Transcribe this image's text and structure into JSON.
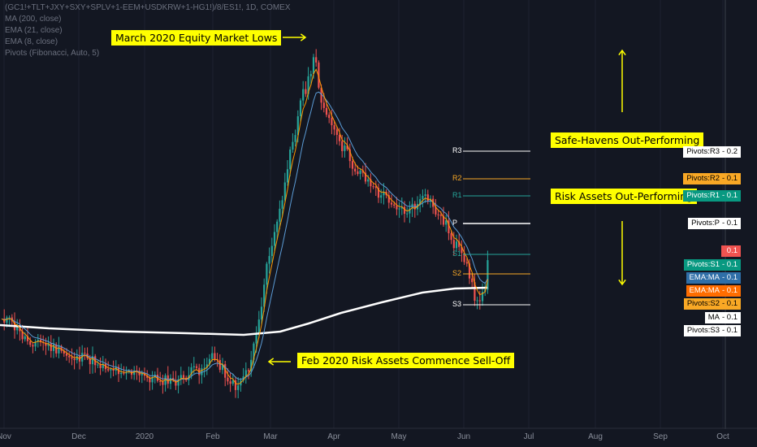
{
  "legend": {
    "symbol": "(GC1!+TLT+JXY+SXY+SPLV+1-EEM+USDKRW+1-HG1!)/8/ES1!, 1D, COMEX",
    "ma200": "MA (200, close)",
    "ema21": "EMA (21, close)",
    "ema8": "EMA (8, close)",
    "pivots": "Pivots (Fibonacci, Auto, 5)"
  },
  "annotations": {
    "march_lows": "March 2020 Equity Market Lows",
    "feb_selloff": "Feb 2020 Risk Assets Commence Sell-Off",
    "safe_havens": "Safe-Havens Out-Performing",
    "risk_assets": "Risk Assets Out-Performing"
  },
  "colors": {
    "background": "#131722",
    "up": "#26a69a",
    "down": "#ef5350",
    "ma200": "#ffffff",
    "ema21": "#5b9bd5",
    "ema8": "#ff9800",
    "pivot_r3": "#ffffff",
    "pivot_r2": "#f9a825",
    "pivot_r1": "#26a69a",
    "pivot_p": "#ffffff",
    "pivot_s1": "#26a69a",
    "pivot_s2": "#f9a825",
    "pivot_s3": "#ffffff",
    "note_bg": "#ffff00"
  },
  "chart_data": {
    "type": "candlestick",
    "title": "(GC1!+TLT+JXY+SXY+SPLV+1-EEM+USDKRW+1-HG1!)/8/ES1!, 1D, COMEX",
    "x_tick_labels": [
      "Nov",
      "Dec",
      "2020",
      "Feb",
      "Mar",
      "Apr",
      "May",
      "Jun",
      "Jul",
      "Aug",
      "Sep",
      "Oct"
    ],
    "pivot_levels": [
      {
        "name": "R3",
        "value": 0.2
      },
      {
        "name": "R2",
        "value": 0.1
      },
      {
        "name": "R1",
        "value": 0.1
      },
      {
        "name": "P",
        "value": 0.1
      },
      {
        "name": "S1",
        "value": 0.1
      },
      {
        "name": "S2",
        "value": 0.1
      },
      {
        "name": "S3",
        "value": 0.1
      }
    ],
    "price_badges": [
      {
        "label": "Pivots:R3",
        "value": "0.2",
        "bg": "#ffffff",
        "fg": "#000000"
      },
      {
        "label": "Pivots:R2",
        "value": "0.1",
        "bg": "#f9a825",
        "fg": "#000000"
      },
      {
        "label": "Pivots:R1",
        "value": "0.1",
        "bg": "#089981",
        "fg": "#ffffff"
      },
      {
        "label": "Pivots:P",
        "value": "0.1",
        "bg": "#ffffff",
        "fg": "#000000"
      },
      {
        "label": "",
        "value": "0.1",
        "bg": "#ef5350",
        "fg": "#ffffff"
      },
      {
        "label": "Pivots:S1",
        "value": "0.1",
        "bg": "#089981",
        "fg": "#ffffff"
      },
      {
        "label": "EMA:MA",
        "value": "0.1",
        "bg": "#2f6fa8",
        "fg": "#ffffff"
      },
      {
        "label": "EMA:MA",
        "value": "0.1",
        "bg": "#ff6d00",
        "fg": "#ffffff"
      },
      {
        "label": "Pivots:S2",
        "value": "0.1",
        "bg": "#f9a825",
        "fg": "#000000"
      },
      {
        "label": "MA",
        "value": "0.1",
        "bg": "#ffffff",
        "fg": "#000000"
      },
      {
        "label": "Pivots:S3",
        "value": "0.1",
        "bg": "#ffffff",
        "fg": "#000000"
      }
    ],
    "series_ratio": [
      [
        "2019-10-28",
        0.102
      ],
      [
        "2019-11-04",
        0.1
      ],
      [
        "2019-11-11",
        0.098
      ],
      [
        "2019-11-18",
        0.099
      ],
      [
        "2019-11-25",
        0.097
      ],
      [
        "2019-12-02",
        0.098
      ],
      [
        "2019-12-09",
        0.096
      ],
      [
        "2019-12-16",
        0.094
      ],
      [
        "2019-12-23",
        0.093
      ],
      [
        "2019-12-30",
        0.095
      ],
      [
        "2020-01-06",
        0.094
      ],
      [
        "2020-01-13",
        0.092
      ],
      [
        "2020-01-20",
        0.096
      ],
      [
        "2020-01-27",
        0.098
      ],
      [
        "2020-02-03",
        0.095
      ],
      [
        "2020-02-10",
        0.093
      ],
      [
        "2020-02-17",
        0.092
      ],
      [
        "2020-02-24",
        0.112
      ],
      [
        "2020-03-02",
        0.13
      ],
      [
        "2020-03-09",
        0.165
      ],
      [
        "2020-03-16",
        0.195
      ],
      [
        "2020-03-23",
        0.205
      ],
      [
        "2020-03-30",
        0.18
      ],
      [
        "2020-04-06",
        0.165
      ],
      [
        "2020-04-13",
        0.155
      ],
      [
        "2020-04-20",
        0.15
      ],
      [
        "2020-04-27",
        0.148
      ],
      [
        "2020-05-04",
        0.145
      ],
      [
        "2020-05-11",
        0.142
      ],
      [
        "2020-05-18",
        0.138
      ],
      [
        "2020-05-25",
        0.135
      ],
      [
        "2020-06-01",
        0.118
      ],
      [
        "2020-06-08",
        0.112
      ],
      [
        "2020-06-15",
        0.128
      ]
    ]
  }
}
